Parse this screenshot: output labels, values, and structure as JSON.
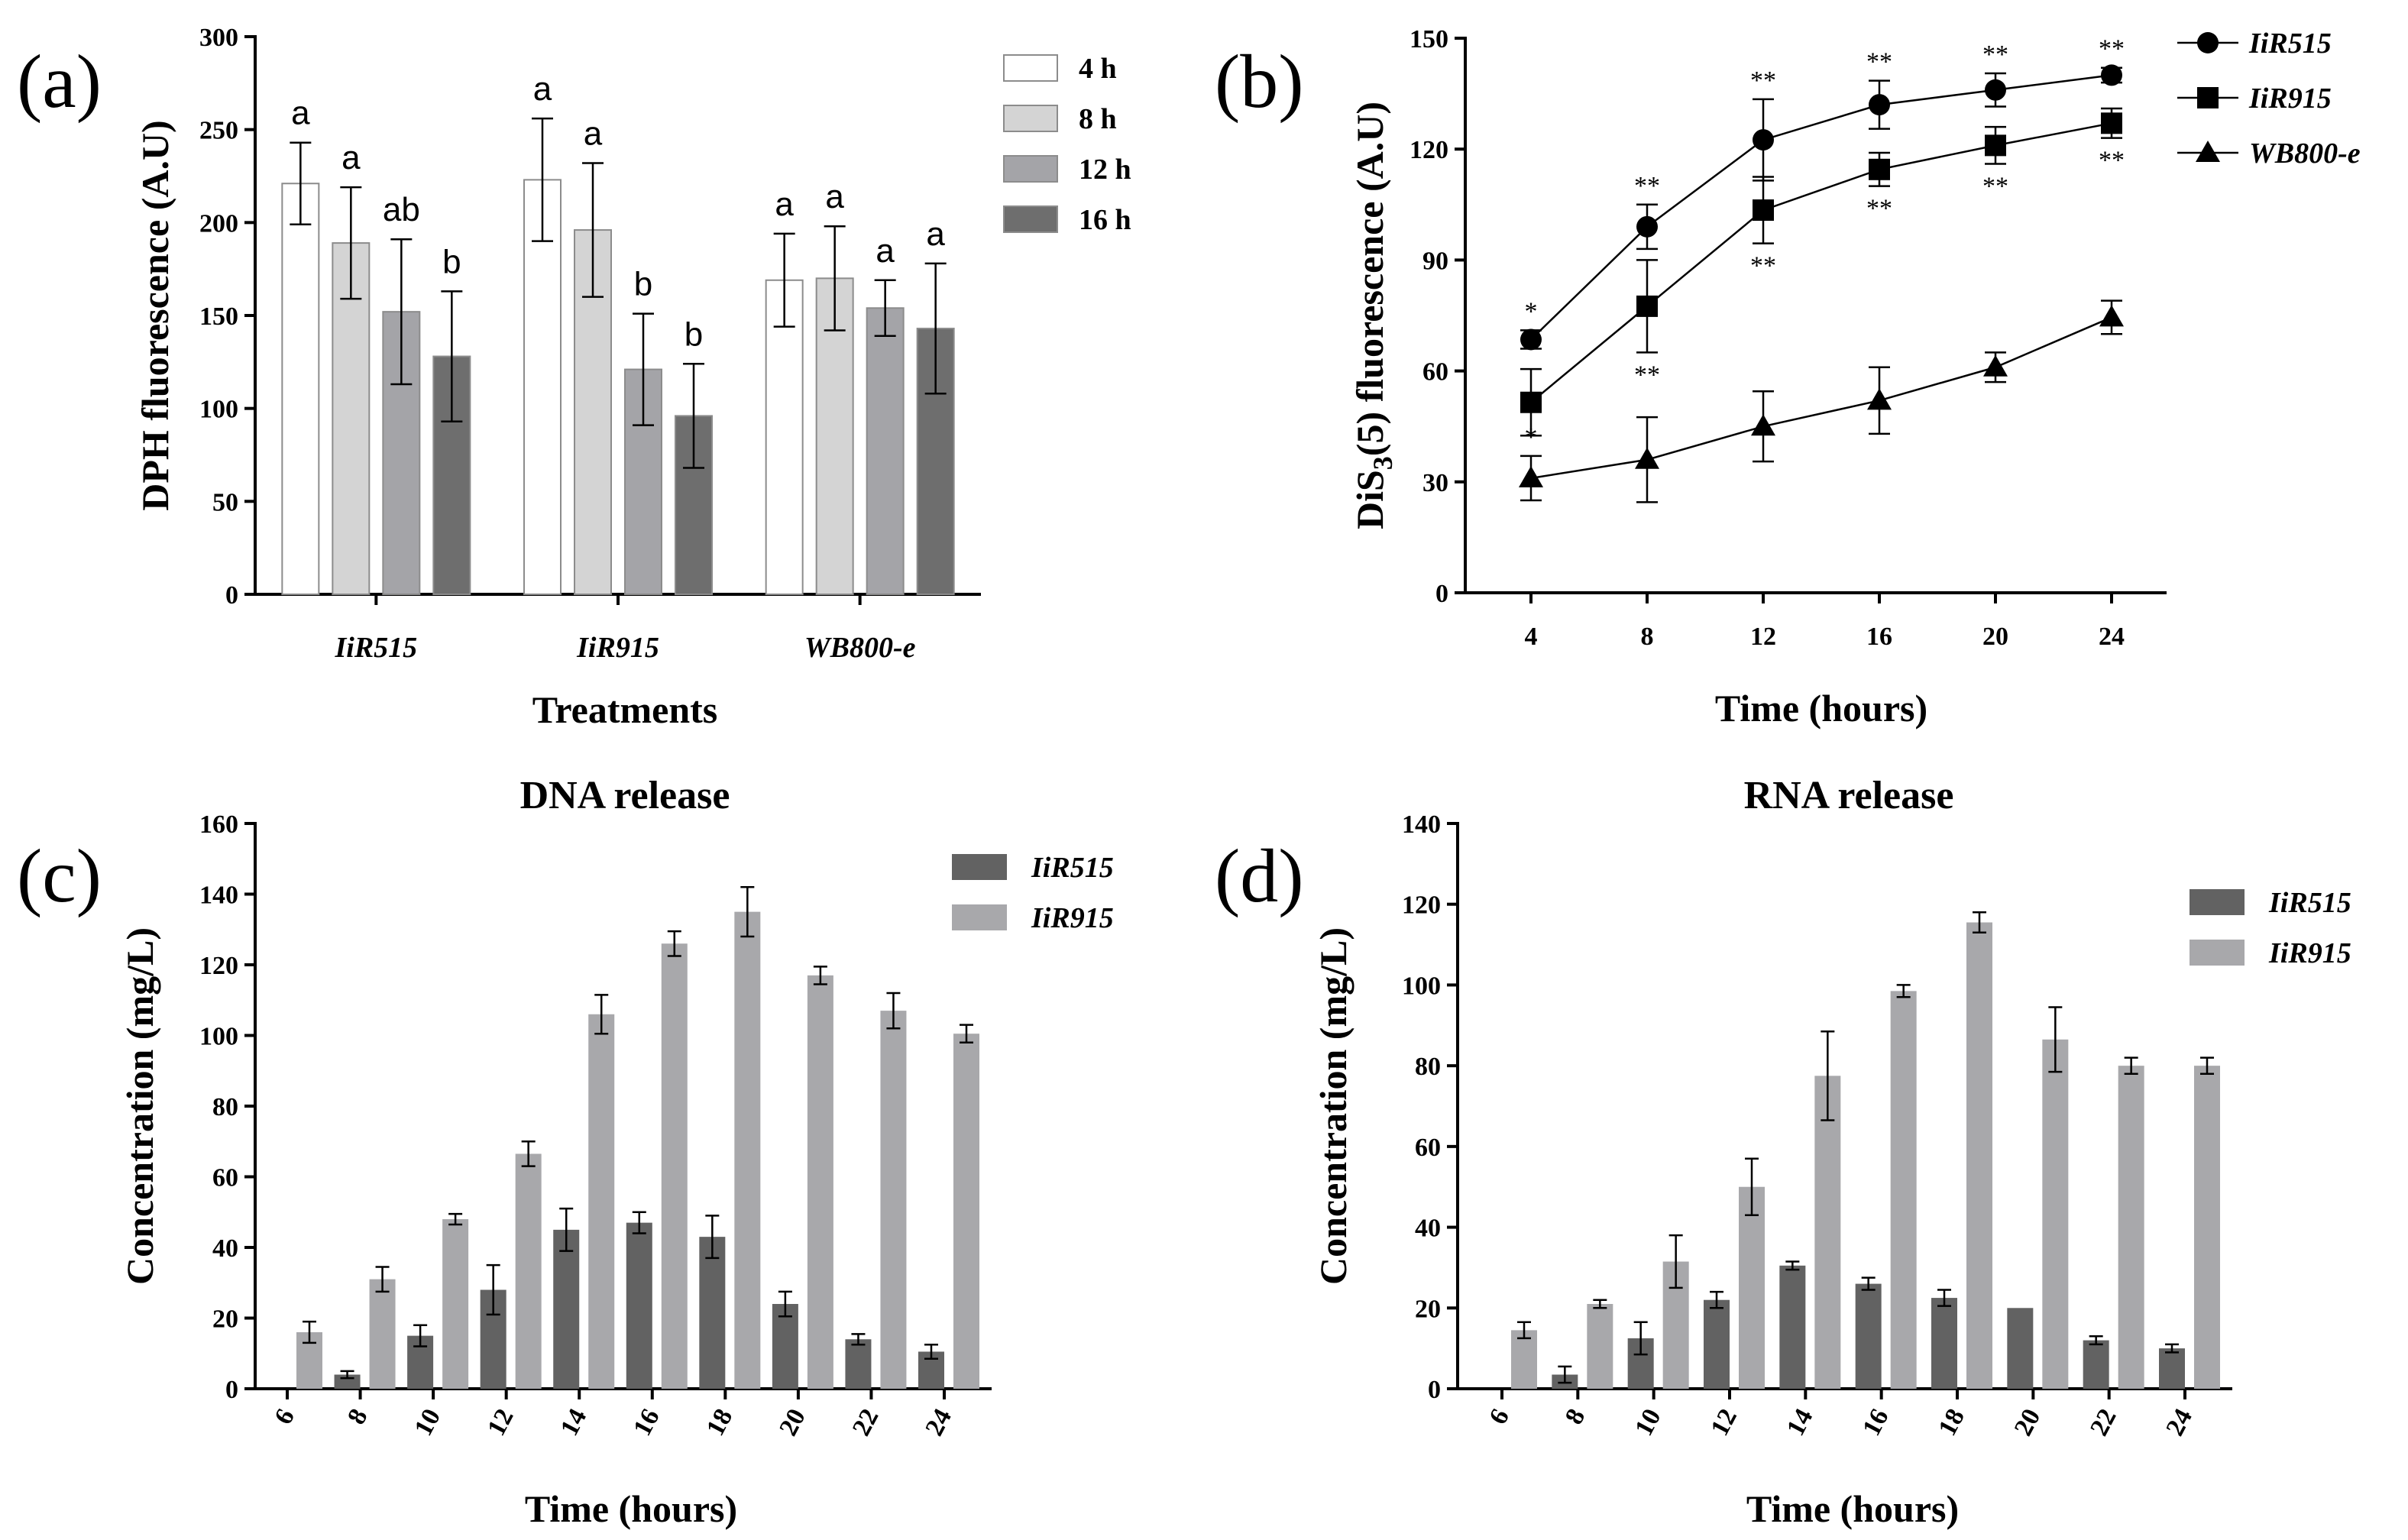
{
  "colors": {
    "h4": "#ffffff",
    "h8": "#d4d4d4",
    "h12": "#a4a4a8",
    "h16": "#6e6e6e",
    "iir515_bar": "#626262",
    "iir915_bar": "#a8a8ab",
    "edge": "#8c8c8c"
  },
  "chart_data": [
    {
      "id": "a",
      "type": "bar",
      "panel_label": "(a)",
      "title": "",
      "xlabel": "Treatments",
      "ylabel": "DPH fluorescence (A.U)",
      "ylim": [
        0,
        300
      ],
      "yticks": [
        "0",
        "50",
        "100",
        "150",
        "200",
        "250",
        "300"
      ],
      "categories": [
        "IiR515",
        "IiR915",
        "WB800-e"
      ],
      "series": [
        {
          "name": "4 h",
          "values": [
            221,
            223,
            169
          ],
          "errors": [
            22,
            33,
            25
          ],
          "letters": [
            "a",
            "a",
            "a"
          ],
          "color": "#ffffff"
        },
        {
          "name": "8 h",
          "values": [
            189,
            196,
            170
          ],
          "errors": [
            30,
            36,
            28
          ],
          "letters": [
            "a",
            "a",
            "a"
          ],
          "color": "#d4d4d4"
        },
        {
          "name": "12 h",
          "values": [
            152,
            121,
            154
          ],
          "errors": [
            39,
            30,
            15
          ],
          "letters": [
            "ab",
            "b",
            "a"
          ],
          "color": "#a4a4a8"
        },
        {
          "name": "16 h",
          "values": [
            128,
            96,
            143
          ],
          "errors": [
            35,
            28,
            35
          ],
          "letters": [
            "b",
            "b",
            "a"
          ],
          "color": "#6e6e6e"
        }
      ]
    },
    {
      "id": "b",
      "type": "line",
      "panel_label": "(b)",
      "title": "",
      "xlabel": "Time (hours)",
      "ylabel_main": "DiS",
      "ylabel_sub": "3",
      "ylabel_rest": "(5) fluorescence (A.U)",
      "ylim": [
        0,
        150
      ],
      "yticks": [
        "0",
        "30",
        "60",
        "90",
        "120",
        "150"
      ],
      "x": [
        4,
        8,
        12,
        16,
        20,
        24
      ],
      "xticks": [
        "4",
        "8",
        "12",
        "16",
        "20",
        "24"
      ],
      "series": [
        {
          "name": "IiR515",
          "marker": "circle",
          "values": [
            68.5,
            99,
            122.5,
            132,
            136,
            140
          ],
          "errors": [
            2.5,
            6,
            11,
            6.5,
            4.5,
            2
          ],
          "annotations": [
            "*",
            "**",
            "**",
            "**",
            "**",
            "**"
          ],
          "annot_pos": "above"
        },
        {
          "name": "IiR915",
          "marker": "square",
          "values": [
            51.5,
            77.5,
            103.5,
            114.5,
            121,
            127
          ],
          "errors": [
            9,
            12.5,
            9,
            4.5,
            5,
            4
          ],
          "annotations": [
            "",
            "**",
            "**",
            "**",
            "**",
            "**"
          ],
          "annot_pos": "below"
        },
        {
          "name": "WB800-e",
          "marker": "triangle",
          "values": [
            31,
            36,
            45,
            52,
            61,
            74.5
          ],
          "errors": [
            6,
            11.5,
            9.5,
            9,
            4,
            4.5
          ],
          "annotations": [
            "*",
            "",
            "",
            "",
            "",
            ""
          ],
          "annot_pos": "above"
        }
      ]
    },
    {
      "id": "c",
      "type": "bar",
      "panel_label": "(c)",
      "title": "DNA release",
      "xlabel": "Time (hours)",
      "ylabel": "Concentration (mg/L)",
      "ylim": [
        0,
        160
      ],
      "yticks": [
        "0",
        "20",
        "40",
        "60",
        "80",
        "100",
        "120",
        "140",
        "160"
      ],
      "categories": [
        "6",
        "8",
        "10",
        "12",
        "14",
        "16",
        "18",
        "20",
        "22",
        "24"
      ],
      "series": [
        {
          "name": "IiR515",
          "values": [
            0,
            4,
            15,
            28,
            45,
            47,
            43,
            24,
            14,
            10.5
          ],
          "errors": [
            0,
            1,
            3,
            7,
            6,
            3,
            6,
            3.5,
            1.5,
            2
          ],
          "color": "#626262"
        },
        {
          "name": "IiR915",
          "values": [
            16,
            31,
            48,
            66.5,
            106,
            126,
            135,
            117,
            107,
            100.5
          ],
          "errors": [
            3,
            3.5,
            1.5,
            3.5,
            5.5,
            3.5,
            7,
            2.5,
            5,
            2.5
          ],
          "color": "#a8a8ab"
        }
      ]
    },
    {
      "id": "d",
      "type": "bar",
      "panel_label": "(d)",
      "title": "RNA release",
      "xlabel": "Time (hours)",
      "ylabel": "Concentration (mg/L)",
      "ylim": [
        0,
        140
      ],
      "yticks": [
        "0",
        "20",
        "40",
        "60",
        "80",
        "100",
        "120",
        "140"
      ],
      "categories": [
        "6",
        "8",
        "10",
        "12",
        "14",
        "16",
        "18",
        "20",
        "22",
        "24"
      ],
      "series": [
        {
          "name": "IiR515",
          "values": [
            0,
            3.5,
            12.5,
            22,
            30.5,
            26,
            22.5,
            20,
            12,
            10
          ],
          "errors": [
            0,
            2,
            4,
            2,
            1,
            1.5,
            2,
            0,
            1,
            1
          ],
          "color": "#626262"
        },
        {
          "name": "IiR915",
          "values": [
            14.5,
            21,
            31.5,
            50,
            77.5,
            98.5,
            115.5,
            86.5,
            80,
            80
          ],
          "errors": [
            2,
            1,
            6.5,
            7,
            11,
            1.5,
            2.5,
            8,
            2,
            2
          ],
          "color": "#a8a8ab"
        }
      ]
    }
  ]
}
